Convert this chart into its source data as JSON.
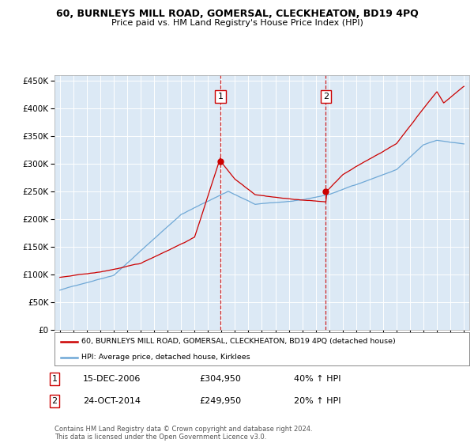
{
  "title": "60, BURNLEYS MILL ROAD, GOMERSAL, CLECKHEATON, BD19 4PQ",
  "subtitle": "Price paid vs. HM Land Registry's House Price Index (HPI)",
  "sale1_x": 2006.917,
  "sale1_price": 304950,
  "sale1_label": "1",
  "sale2_x": 2014.75,
  "sale2_price": 249950,
  "sale2_label": "2",
  "legend_line1": "60, BURNLEYS MILL ROAD, GOMERSAL, CLECKHEATON, BD19 4PQ (detached house)",
  "legend_line2": "HPI: Average price, detached house, Kirklees",
  "footer": "Contains HM Land Registry data © Crown copyright and database right 2024.\nThis data is licensed under the Open Government Licence v3.0.",
  "hpi_color": "#6fa8d6",
  "price_color": "#cc0000",
  "background_color": "#dce9f5",
  "ylim": [
    0,
    460000
  ],
  "yticks": [
    0,
    50000,
    100000,
    150000,
    200000,
    250000,
    300000,
    350000,
    400000,
    450000
  ],
  "table_row1": [
    "1",
    "15-DEC-2006",
    "£304,950",
    "40% ↑ HPI"
  ],
  "table_row2": [
    "2",
    "24-OCT-2014",
    "£249,950",
    "20% ↑ HPI"
  ]
}
